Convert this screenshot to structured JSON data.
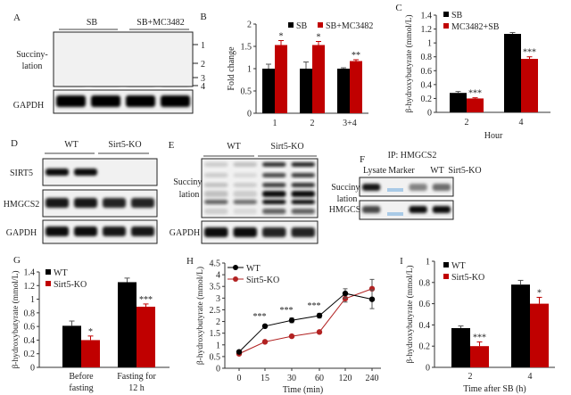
{
  "panels": {
    "A": {
      "label": "A",
      "groups": [
        "SB",
        "SB+MC3482"
      ],
      "row_label": [
        "Succiny-",
        "lation"
      ],
      "gapdh": "GAPDH",
      "bands": [
        "1",
        "2",
        "3",
        "4"
      ]
    },
    "D": {
      "label": "D",
      "groups": [
        "WT",
        "Sirt5-KO"
      ],
      "rows": [
        "SIRT5",
        "HMGCS2",
        "GAPDH"
      ]
    },
    "E": {
      "label": "E",
      "groups": [
        "WT",
        "Sirt5-KO"
      ],
      "row_label": [
        "Succiny-",
        "lation"
      ],
      "gapdh": "GAPDH"
    },
    "F": {
      "label": "F",
      "ip": "IP: HMGCS2",
      "lanes": [
        "Lysate",
        "Marker",
        "WT",
        "Sirt5-KO"
      ],
      "row_label": [
        "Succiny-",
        "lation"
      ],
      "row2": "HMGCS2"
    }
  },
  "chart_data": [
    {
      "panel": "B",
      "type": "bar",
      "ylabel": "Fold change",
      "xlabel": "",
      "ylim": [
        0,
        2
      ],
      "yticks": [
        "0",
        "0.5",
        "1",
        "1.5",
        "2"
      ],
      "categories": [
        [
          "1"
        ],
        [
          "2"
        ],
        [
          "3+4"
        ]
      ],
      "series": [
        {
          "name": "SB",
          "color": "#000000",
          "values": [
            1.0,
            1.0,
            1.0
          ],
          "errors": [
            0.1,
            0.15,
            0.02
          ]
        },
        {
          "name": "SB+MC3482",
          "color": "#c00000",
          "values": [
            1.53,
            1.53,
            1.17
          ],
          "errors": [
            0.1,
            0.08,
            0.03
          ]
        }
      ],
      "significance": [
        "*",
        "*",
        "**"
      ],
      "legend": "top"
    },
    {
      "panel": "C",
      "type": "bar",
      "ylabel": "β-hydroxybutyrate (mmol/L)",
      "xlabel": "Hour",
      "ylim": [
        0,
        1.4
      ],
      "yticks": [
        "0",
        "0.2",
        "0.4",
        "0.6",
        "0.8",
        "1",
        "1.2",
        "1.4"
      ],
      "categories": [
        [
          "2"
        ],
        [
          "4"
        ]
      ],
      "series": [
        {
          "name": "SB",
          "color": "#000000",
          "values": [
            0.28,
            1.13
          ],
          "errors": [
            0.02,
            0.02
          ]
        },
        {
          "name": "MC3482+SB",
          "color": "#c00000",
          "values": [
            0.2,
            0.77
          ],
          "errors": [
            0.01,
            0.03
          ]
        }
      ],
      "significance": [
        "***",
        "***"
      ],
      "legend": "top-left"
    },
    {
      "panel": "G",
      "type": "bar",
      "ylabel": "β-hydroxybutyrate (mmol/L)",
      "xlabel": "",
      "ylim": [
        0,
        1.4
      ],
      "yticks": [
        "0",
        "0.2",
        "0.4",
        "0.6",
        "0.8",
        "1",
        "1.2",
        "1.4"
      ],
      "categories": [
        [
          "Before",
          "fasting"
        ],
        [
          "Fasting for",
          "12 h"
        ]
      ],
      "series": [
        {
          "name": "WT",
          "color": "#000000",
          "values": [
            0.61,
            1.25
          ],
          "errors": [
            0.07,
            0.06
          ]
        },
        {
          "name": "Sirt5-KO",
          "color": "#c00000",
          "values": [
            0.4,
            0.89
          ],
          "errors": [
            0.06,
            0.04
          ]
        }
      ],
      "significance": [
        "*",
        "***"
      ],
      "legend": "top-left"
    },
    {
      "panel": "H",
      "type": "line",
      "ylabel": "β-hydroxybutyrate (mmol/L)",
      "xlabel": "Time (min)",
      "ylim": [
        0,
        4.5
      ],
      "yticks": [
        "0",
        "0.5",
        "1",
        "1.5",
        "2",
        "2.5",
        "3",
        "3.5",
        "4",
        "4.5"
      ],
      "x": [
        "0",
        "15",
        "30",
        "60",
        "120",
        "240"
      ],
      "series": [
        {
          "name": "WT",
          "color": "#000000",
          "values": [
            0.7,
            1.8,
            2.05,
            2.25,
            3.2,
            2.95
          ],
          "errors": [
            0.05,
            0.05,
            0.1,
            0.1,
            0.2,
            0.4
          ]
        },
        {
          "name": "Sirt5-KO",
          "color": "#b22222",
          "values": [
            0.62,
            1.13,
            1.37,
            1.55,
            2.98,
            3.4
          ],
          "errors": [
            0.05,
            0.04,
            0.04,
            0.04,
            0.15,
            0.4
          ]
        }
      ],
      "significance": [
        "",
        "***",
        "***",
        "***",
        "",
        ""
      ],
      "legend": "top-left"
    },
    {
      "panel": "I",
      "type": "bar",
      "ylabel": "β-hydroxybutyrate (mmol/L)",
      "xlabel": "Time after SB (h)",
      "ylim": [
        0,
        1
      ],
      "yticks": [
        "0",
        "0.2",
        "0.4",
        "0.6",
        "0.8",
        "1"
      ],
      "categories": [
        [
          "2"
        ],
        [
          "4"
        ]
      ],
      "series": [
        {
          "name": "WT",
          "color": "#000000",
          "values": [
            0.37,
            0.78
          ],
          "errors": [
            0.02,
            0.04
          ]
        },
        {
          "name": "Sirt5-KO",
          "color": "#c00000",
          "values": [
            0.2,
            0.6
          ],
          "errors": [
            0.04,
            0.06
          ]
        }
      ],
      "significance": [
        "***",
        "*"
      ],
      "legend": "top-left"
    }
  ]
}
